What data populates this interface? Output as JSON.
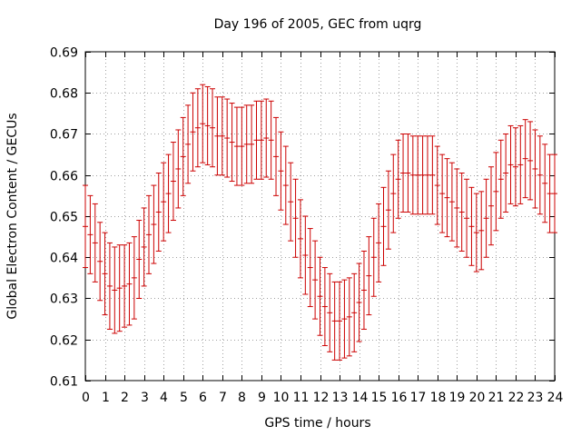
{
  "chart_data": {
    "type": "scatter",
    "title": "Day 196 of 2005, GEC from uqrg",
    "xlabel": "GPS time / hours",
    "ylabel": "Global Electron Content / GECUs",
    "xlim": [
      0,
      24
    ],
    "ylim": [
      0.61,
      0.69
    ],
    "x_ticks": [
      0,
      1,
      2,
      3,
      4,
      5,
      6,
      7,
      8,
      9,
      10,
      11,
      12,
      13,
      14,
      15,
      16,
      17,
      18,
      19,
      20,
      21,
      22,
      23,
      24
    ],
    "y_ticks": [
      0.61,
      0.62,
      0.63,
      0.64,
      0.65,
      0.66,
      0.67,
      0.68,
      0.69
    ],
    "y_tick_labels": [
      "0.61",
      "0.62",
      "0.63",
      "0.64",
      "0.65",
      "0.66",
      "0.67",
      "0.68",
      "0.69"
    ],
    "grid": true,
    "error_bar_color": "#cc0000",
    "series": [
      {
        "x": [
          0,
          0.25,
          0.5,
          0.75,
          1,
          1.25,
          1.5,
          1.75,
          2,
          2.25,
          2.5,
          2.75,
          3,
          3.25,
          3.5,
          3.75,
          4,
          4.25,
          4.5,
          4.75,
          5,
          5.25,
          5.5,
          5.75,
          6,
          6.25,
          6.5,
          6.75,
          7,
          7.25,
          7.5,
          7.75,
          8,
          8.25,
          8.5,
          8.75,
          9,
          9.25,
          9.5,
          9.75,
          10,
          10.25,
          10.5,
          10.75,
          11,
          11.25,
          11.5,
          11.75,
          12,
          12.25,
          12.5,
          12.75,
          13,
          13.25,
          13.5,
          13.75,
          14,
          14.25,
          14.5,
          14.75,
          15,
          15.25,
          15.5,
          15.75,
          16,
          16.25,
          16.5,
          16.75,
          17,
          17.25,
          17.5,
          17.75,
          18,
          18.25,
          18.5,
          18.75,
          19,
          19.25,
          19.5,
          19.75,
          20,
          20.25,
          20.5,
          20.75,
          21,
          21.25,
          21.5,
          21.75,
          22,
          22.25,
          22.5,
          22.75,
          23,
          23.25,
          23.5,
          23.75,
          24
        ],
        "values": [
          0.6475,
          0.6455,
          0.6435,
          0.639,
          0.636,
          0.633,
          0.632,
          0.6325,
          0.633,
          0.6335,
          0.635,
          0.6395,
          0.6425,
          0.6455,
          0.648,
          0.651,
          0.6535,
          0.6555,
          0.6585,
          0.6615,
          0.6645,
          0.6675,
          0.6705,
          0.6715,
          0.6725,
          0.672,
          0.6715,
          0.6695,
          0.6695,
          0.669,
          0.668,
          0.667,
          0.667,
          0.6675,
          0.6675,
          0.6685,
          0.6685,
          0.669,
          0.6685,
          0.6645,
          0.661,
          0.6575,
          0.6535,
          0.6495,
          0.6445,
          0.6405,
          0.6375,
          0.6345,
          0.6305,
          0.628,
          0.6265,
          0.6245,
          0.6245,
          0.625,
          0.6255,
          0.6265,
          0.629,
          0.632,
          0.6355,
          0.64,
          0.6435,
          0.6475,
          0.6515,
          0.6555,
          0.659,
          0.6605,
          0.6605,
          0.66,
          0.66,
          0.66,
          0.66,
          0.66,
          0.6575,
          0.6555,
          0.6545,
          0.6535,
          0.652,
          0.651,
          0.6495,
          0.6475,
          0.646,
          0.6465,
          0.6495,
          0.6525,
          0.656,
          0.659,
          0.6605,
          0.6625,
          0.662,
          0.6625,
          0.664,
          0.6635,
          0.6615,
          0.66,
          0.658,
          0.6555,
          0.6555
        ],
        "err": [
          0.01,
          0.0095,
          0.0095,
          0.0095,
          0.01,
          0.0105,
          0.0105,
          0.0105,
          0.01,
          0.01,
          0.01,
          0.0095,
          0.0095,
          0.0095,
          0.0095,
          0.0095,
          0.0095,
          0.0095,
          0.0095,
          0.0095,
          0.0095,
          0.0095,
          0.0095,
          0.0095,
          0.0095,
          0.0095,
          0.0095,
          0.0095,
          0.0095,
          0.0095,
          0.0095,
          0.0095,
          0.0095,
          0.0095,
          0.0095,
          0.0095,
          0.0095,
          0.0095,
          0.0095,
          0.0095,
          0.0095,
          0.0095,
          0.0095,
          0.0095,
          0.0095,
          0.0095,
          0.0095,
          0.0095,
          0.0095,
          0.0095,
          0.0095,
          0.0095,
          0.0095,
          0.0095,
          0.0095,
          0.0095,
          0.0095,
          0.0095,
          0.0095,
          0.0095,
          0.0095,
          0.0095,
          0.0095,
          0.0095,
          0.0095,
          0.0095,
          0.0095,
          0.0095,
          0.0095,
          0.0095,
          0.0095,
          0.0095,
          0.0095,
          0.0095,
          0.0095,
          0.0095,
          0.0095,
          0.0095,
          0.0095,
          0.0095,
          0.0095,
          0.0095,
          0.0095,
          0.0095,
          0.0095,
          0.0095,
          0.0095,
          0.0095,
          0.0095,
          0.0095,
          0.0095,
          0.0095,
          0.0095,
          0.0095,
          0.0095,
          0.0095,
          0.0095
        ]
      }
    ]
  }
}
